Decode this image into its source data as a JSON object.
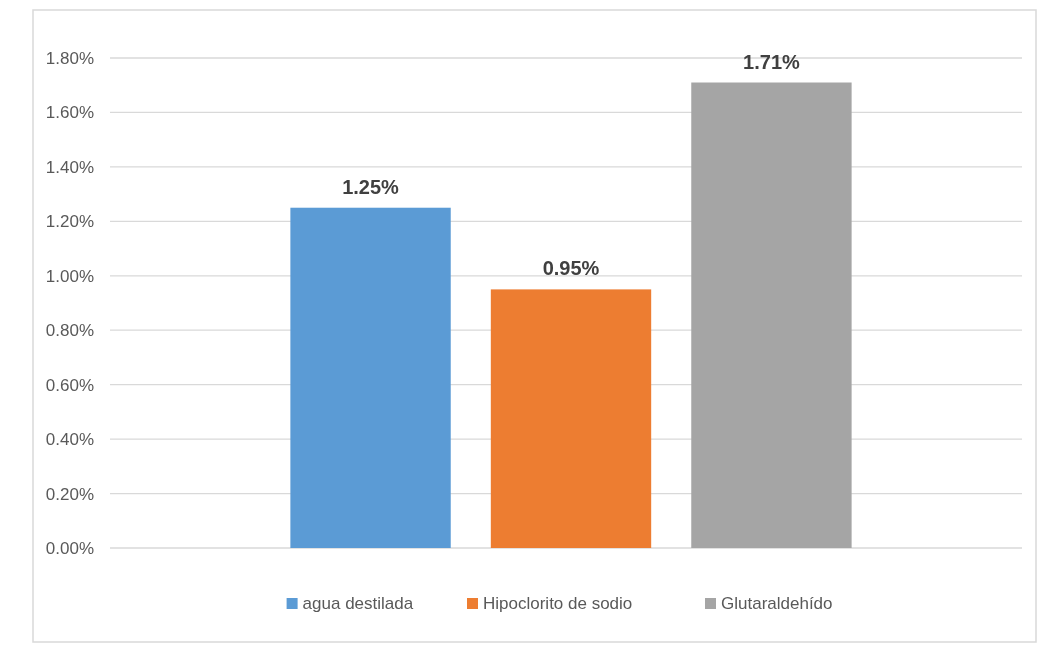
{
  "chart_data": {
    "type": "bar",
    "categories": [
      null
    ],
    "series": [
      {
        "name": "agua destilada",
        "color": "#5b9bd5",
        "values": [
          1.25
        ],
        "value_labels": [
          "1.25%"
        ]
      },
      {
        "name": "Hipoclorito de sodio",
        "color": "#ed7d31",
        "values": [
          0.95
        ],
        "value_labels": [
          "0.95%"
        ]
      },
      {
        "name": "Glutaraldehído",
        "color": "#a5a5a5",
        "values": [
          1.71
        ],
        "value_labels": [
          "1.71%"
        ]
      }
    ],
    "ylim": [
      0,
      1.8
    ],
    "yticks": [
      {
        "value": 0,
        "label": "0.00%"
      },
      {
        "value": 0.2,
        "label": "0.20%"
      },
      {
        "value": 0.4,
        "label": "0.40%"
      },
      {
        "value": 0.6,
        "label": "0.60%"
      },
      {
        "value": 0.8,
        "label": "0.80%"
      },
      {
        "value": 1,
        "label": "1.00%"
      },
      {
        "value": 1.2,
        "label": "1.20%"
      },
      {
        "value": 1.4,
        "label": "1.40%"
      },
      {
        "value": 1.6,
        "label": "1.60%"
      },
      {
        "value": 1.8,
        "label": "1.80%"
      }
    ],
    "grid": "y",
    "legend": "bottom"
  }
}
